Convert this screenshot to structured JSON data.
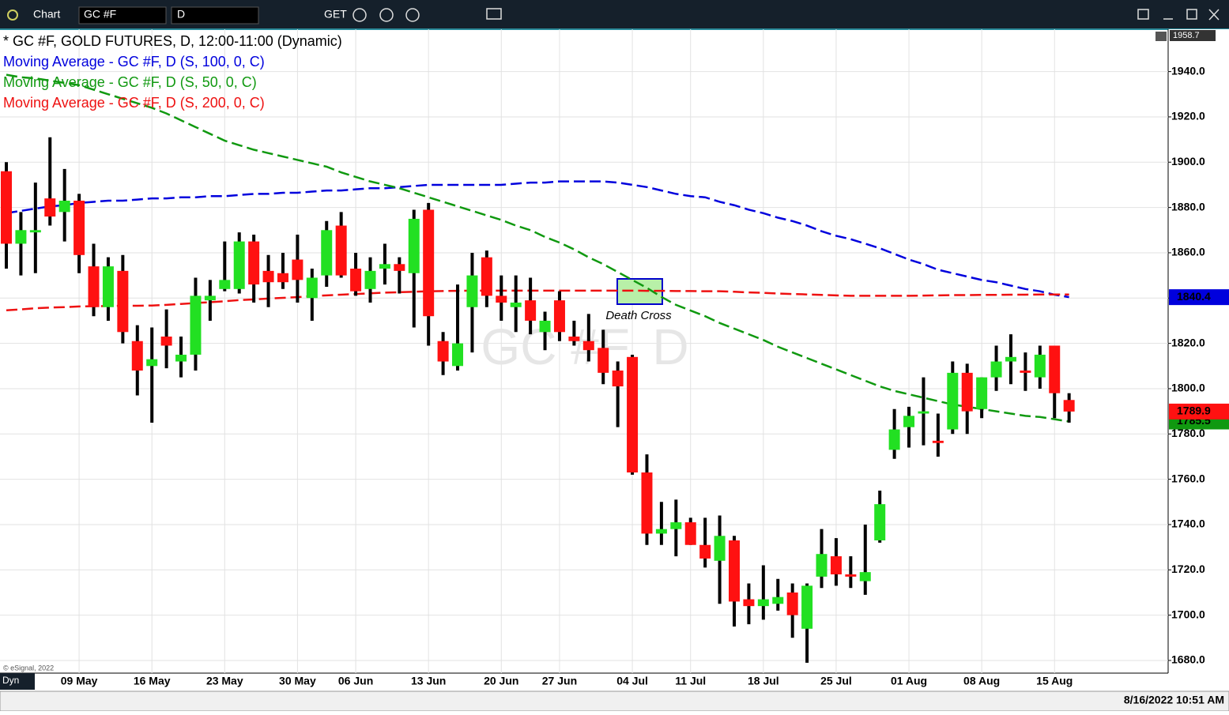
{
  "toolbar": {
    "title": "Chart",
    "symbol": "GC #F",
    "interval": "D",
    "get": "GET"
  },
  "footer": {
    "copyright": "© eSignal, 2022",
    "mode": "Dyn",
    "timestamp": "8/16/2022 10:51 AM"
  },
  "chart_data": {
    "type": "candlestick",
    "title": "* GC #F, GOLD FUTURES, D, 12:00-11:00 (Dynamic)",
    "watermark": "GC #F, D",
    "annotation": "Death Cross",
    "categories": [
      null,
      null,
      null,
      null,
      null,
      "09 May",
      null,
      null,
      null,
      null,
      "16 May",
      null,
      null,
      null,
      null,
      "23 May",
      null,
      null,
      null,
      null,
      "30 May",
      null,
      null,
      null,
      "06 Jun",
      null,
      null,
      null,
      null,
      "13 Jun",
      null,
      null,
      null,
      null,
      "20 Jun",
      null,
      null,
      null,
      "27 Jun",
      null,
      null,
      null,
      null,
      "04 Jul",
      null,
      null,
      null,
      "11 Jul",
      null,
      null,
      null,
      null,
      "18 Jul",
      null,
      null,
      null,
      null,
      "25 Jul",
      null,
      null,
      null,
      null,
      "01 Aug",
      null,
      null,
      null,
      null,
      "08 Aug",
      null,
      null,
      null,
      null,
      "15 Aug",
      null
    ],
    "open": [
      1896,
      1864,
      1869,
      1884,
      1878,
      1883,
      1854,
      1836,
      1852,
      1821,
      1810,
      1823,
      1812,
      1815,
      1839,
      1844,
      1844,
      1865,
      1852,
      1851,
      1857,
      1840,
      1850,
      1872,
      1853,
      1844,
      1853,
      1855,
      1851,
      1879,
      1821,
      1810,
      1836,
      1858,
      1841,
      1836,
      1839,
      1825,
      1839,
      1823,
      1821,
      1818,
      1808,
      1814,
      1763,
      1736,
      1738,
      1741,
      1731,
      1724,
      1733,
      1707,
      1704,
      1705,
      1710,
      1694,
      1717,
      1726,
      1718,
      1715,
      1733,
      1773,
      1783,
      1789,
      1777,
      1782,
      1807,
      1791,
      1805,
      1812,
      1808,
      1805,
      1819,
      1795
    ],
    "high": [
      1900,
      1878,
      1891,
      1911,
      1897,
      1886,
      1864,
      1858,
      1859,
      1828,
      1827,
      1835,
      1823,
      1849,
      1848,
      1865,
      1869,
      1868,
      1859,
      1860,
      1868,
      1853,
      1874,
      1878,
      1860,
      1858,
      1864,
      1858,
      1879,
      1882,
      1825,
      1846,
      1860,
      1861,
      1850,
      1850,
      1849,
      1834,
      1843,
      1830,
      1833,
      1826,
      1812,
      1815,
      1771,
      1750,
      1751,
      1743,
      1743,
      1744,
      1735,
      1714,
      1722,
      1716,
      1714,
      1714,
      1738,
      1734,
      1726,
      1740,
      1755,
      1791,
      1792,
      1805,
      1789,
      1812,
      1811,
      1805,
      1819,
      1824,
      1816,
      1819,
      1819,
      1798
    ],
    "low": [
      1853,
      1850,
      1851,
      1872,
      1865,
      1851,
      1832,
      1830,
      1820,
      1797,
      1785,
      1809,
      1805,
      1808,
      1830,
      1843,
      1842,
      1838,
      1836,
      1844,
      1838,
      1830,
      1845,
      1849,
      1841,
      1838,
      1846,
      1842,
      1827,
      1819,
      1806,
      1808,
      1816,
      1836,
      1830,
      1825,
      1824,
      1817,
      1821,
      1819,
      1812,
      1802,
      1783,
      1762,
      1731,
      1731,
      1726,
      1731,
      1721,
      1705,
      1695,
      1696,
      1698,
      1702,
      1690,
      1679,
      1712,
      1713,
      1712,
      1709,
      1732,
      1769,
      1774,
      1775,
      1770,
      1780,
      1780,
      1787,
      1799,
      1802,
      1799,
      1800,
      1787,
      1785
    ],
    "close": [
      1864,
      1870,
      1870,
      1876,
      1883,
      1859,
      1836,
      1854,
      1825,
      1808,
      1813,
      1819,
      1815,
      1841,
      1841,
      1848,
      1865,
      1846,
      1847,
      1847,
      1848,
      1849,
      1870,
      1850,
      1843,
      1852,
      1855,
      1852,
      1875,
      1832,
      1812,
      1820,
      1850,
      1841,
      1838,
      1838,
      1830,
      1830,
      1825,
      1821,
      1817,
      1807,
      1801,
      1763,
      1736,
      1738,
      1741,
      1731,
      1725,
      1735,
      1706,
      1704,
      1707,
      1708,
      1700,
      1713,
      1727,
      1718,
      1717,
      1719,
      1749,
      1782,
      1788,
      1790,
      1776,
      1807,
      1790,
      1805,
      1812,
      1814,
      1807,
      1815,
      1798,
      1789.9
    ],
    "up_color": "#22e022",
    "down_color": "#ff1111",
    "series": [
      {
        "name": "Moving Average - GC #F, D (S, 100, 0, C)",
        "color": "#0000dd",
        "values": [
          1877.5,
          1878.5,
          1879.5,
          1880.5,
          1881,
          1882,
          1882.5,
          1883,
          1883,
          1883.5,
          1884,
          1884,
          1884.5,
          1884.5,
          1885,
          1885,
          1885.5,
          1886,
          1886,
          1886.5,
          1886.5,
          1887,
          1887.5,
          1887.5,
          1888,
          1888.5,
          1888.5,
          1889,
          1889.5,
          1890,
          1890,
          1890,
          1890,
          1890,
          1890,
          1890.5,
          1891,
          1891,
          1891.5,
          1891.5,
          1891.5,
          1891.5,
          1891,
          1890,
          1889,
          1887.5,
          1886,
          1885,
          1884.5,
          1882.5,
          1881,
          1879,
          1877.5,
          1875.5,
          1874,
          1872,
          1869.5,
          1867.5,
          1866,
          1864,
          1862,
          1859.5,
          1857,
          1855,
          1852.5,
          1851,
          1849.5,
          1848,
          1847,
          1845.5,
          1844,
          1843,
          1841.5,
          1840.4
        ]
      },
      {
        "name": "Moving Average - GC #F, D (S, 50, 0, C)",
        "color": "#109910",
        "values": [
          1938.6,
          1937.5,
          1937,
          1936,
          1935,
          1934,
          1932,
          1930,
          1928,
          1926,
          1924,
          1921.5,
          1918.5,
          1915.5,
          1912.5,
          1909.5,
          1907.5,
          1905.5,
          1904,
          1902.5,
          1901,
          1899.5,
          1898,
          1895.5,
          1893.5,
          1891.5,
          1890,
          1888.5,
          1886.5,
          1884.5,
          1882.5,
          1880.5,
          1878.5,
          1876.5,
          1874.5,
          1872,
          1870,
          1867,
          1864.5,
          1861.5,
          1858,
          1855,
          1851.5,
          1848,
          1844.5,
          1840.5,
          1837,
          1834.5,
          1832,
          1829,
          1826.5,
          1824,
          1821.5,
          1818.5,
          1816,
          1813.5,
          1811,
          1808.5,
          1806,
          1803.5,
          1801,
          1799,
          1797.5,
          1796,
          1794.5,
          1793,
          1792,
          1791,
          1790,
          1789,
          1788,
          1787.5,
          1786.5,
          1785.5
        ]
      },
      {
        "name": "Moving Average - GC #F, D (S, 200, 0, C)",
        "color": "#ee1111",
        "values": [
          1834.6,
          1835,
          1835.5,
          1835.8,
          1836,
          1836.3,
          1836.4,
          1836.5,
          1836.6,
          1836.6,
          1836.7,
          1837,
          1837.4,
          1837.8,
          1838.2,
          1838.6,
          1839.1,
          1839.4,
          1839.8,
          1840.1,
          1840.4,
          1840.9,
          1841.2,
          1841.5,
          1841.8,
          1842.1,
          1842.4,
          1842.6,
          1842.8,
          1843,
          1843.1,
          1843.2,
          1843.3,
          1843.3,
          1843.3,
          1843.3,
          1843.3,
          1843.3,
          1843.3,
          1843.3,
          1843.3,
          1843.3,
          1843.3,
          1843.3,
          1843.2,
          1843.2,
          1843.1,
          1843.1,
          1843,
          1843,
          1842.8,
          1842.5,
          1842.3,
          1842,
          1841.8,
          1841.6,
          1841.4,
          1841.2,
          1841,
          1841,
          1841,
          1841,
          1841,
          1841.1,
          1841.2,
          1841.3,
          1841.3,
          1841.4,
          1841.4,
          1841.5,
          1841.5,
          1841.6,
          1841.6,
          1841.6
        ]
      }
    ],
    "ylim": [
      1674.4,
      1958.7
    ],
    "yticks": [
      {
        "value": 1680,
        "label": "1680.0"
      },
      {
        "value": 1700,
        "label": "1700.0"
      },
      {
        "value": 1720,
        "label": "1720.0"
      },
      {
        "value": 1740,
        "label": "1740.0"
      },
      {
        "value": 1760,
        "label": "1760.0"
      },
      {
        "value": 1780,
        "label": "1780.0"
      },
      {
        "value": 1800,
        "label": "1800.0"
      },
      {
        "value": 1820,
        "label": "1820.0"
      },
      {
        "value": 1840,
        "label": "1840.0"
      },
      {
        "value": 1860,
        "label": "1860.0"
      },
      {
        "value": 1880,
        "label": "1880.0"
      },
      {
        "value": 1900,
        "label": "1900.0"
      },
      {
        "value": 1920,
        "label": "1920.0"
      },
      {
        "value": 1940,
        "label": "1940.0"
      }
    ],
    "grid": true
  }
}
